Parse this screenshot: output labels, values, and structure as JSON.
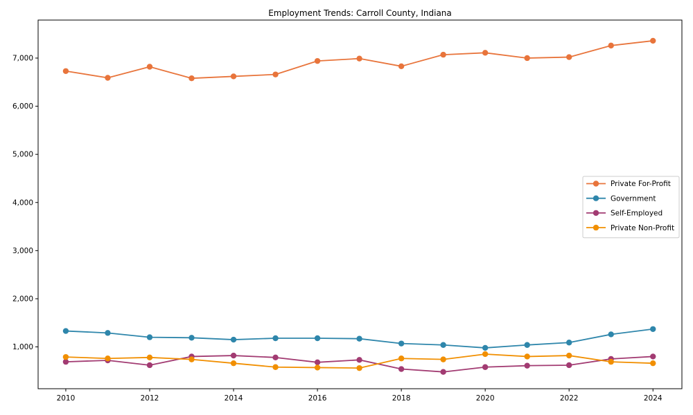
{
  "title": "Employment Trends: Carroll County, Indiana",
  "chart_data": {
    "type": "line",
    "title": "Employment Trends: Carroll County, Indiana",
    "xlabel": "",
    "ylabel": "",
    "x": [
      2010,
      2011,
      2012,
      2013,
      2014,
      2015,
      2016,
      2017,
      2018,
      2019,
      2020,
      2021,
      2022,
      2023,
      2024
    ],
    "series": [
      {
        "name": "Private For-Profit",
        "color": "#E8743B",
        "values": [
          6730,
          6590,
          6820,
          6580,
          6620,
          6660,
          6940,
          6990,
          6830,
          7070,
          7110,
          7000,
          7020,
          7260,
          7360
        ]
      },
      {
        "name": "Government",
        "color": "#2E86AB",
        "values": [
          1330,
          1290,
          1200,
          1190,
          1150,
          1180,
          1180,
          1170,
          1070,
          1040,
          980,
          1040,
          1090,
          1260,
          1370
        ]
      },
      {
        "name": "Self-Employed",
        "color": "#A23B72",
        "values": [
          690,
          720,
          620,
          800,
          820,
          780,
          680,
          730,
          540,
          480,
          580,
          610,
          620,
          750,
          800
        ]
      },
      {
        "name": "Private Non-Profit",
        "color": "#F18F01",
        "values": [
          790,
          760,
          780,
          740,
          660,
          580,
          570,
          560,
          760,
          740,
          850,
          800,
          820,
          690,
          660
        ]
      }
    ],
    "xticks": [
      2010,
      2012,
      2014,
      2016,
      2018,
      2020,
      2022,
      2024
    ],
    "yticks": [
      1000,
      2000,
      3000,
      4000,
      5000,
      6000,
      7000
    ],
    "ytick_labels": [
      "1,000",
      "2,000",
      "3,000",
      "4,000",
      "5,000",
      "6,000",
      "7,000"
    ],
    "xlim": [
      2009.34,
      2024.69
    ],
    "ylim": [
      131,
      7790
    ],
    "grid": false,
    "legend_position": "right",
    "marker": "circle",
    "spine_color": "#000000",
    "legend_border_color": "#cccccc",
    "background_color": "#ffffff"
  }
}
